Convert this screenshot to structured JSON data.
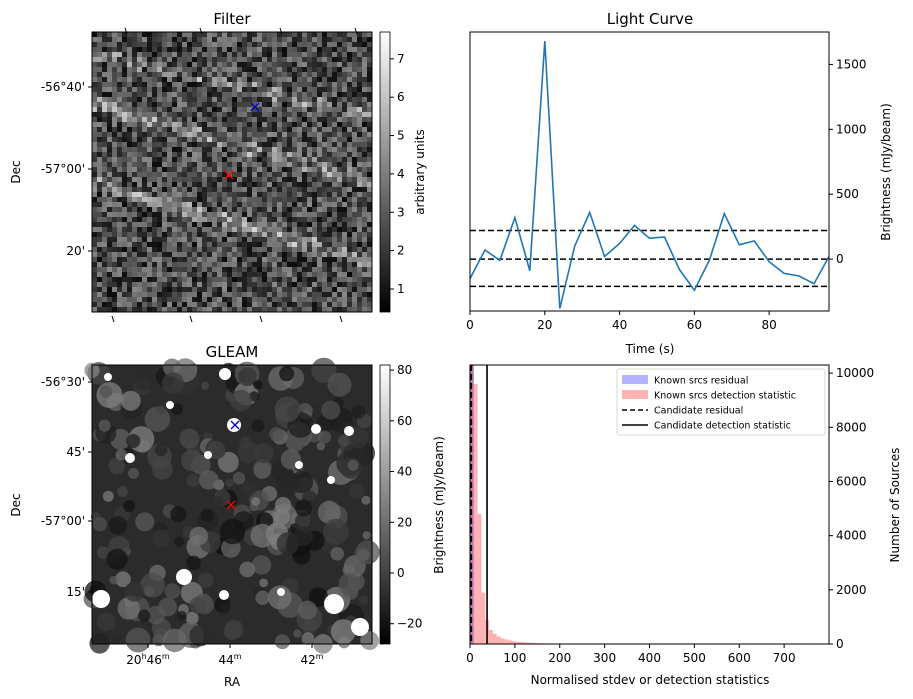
{
  "chart_data": [
    {
      "id": "filter",
      "type": "heatmap",
      "title": "Filter",
      "xlabel": "",
      "ylabel": "Dec",
      "y_tick_labels": [
        "-56°40'",
        "-57°00'",
        "20'"
      ],
      "colorbar_label": "arbitrary units",
      "colorbar_ticks": [
        1,
        2,
        3,
        4,
        5,
        6,
        7
      ],
      "colorbar_range": [
        0.4,
        7.7
      ],
      "colormap": "gray",
      "markers": [
        {
          "label": "candidate",
          "symbol": "x",
          "color": "#ff0000"
        },
        {
          "label": "known source",
          "symbol": "x",
          "color": "#0000cc"
        }
      ]
    },
    {
      "id": "light_curve",
      "type": "line",
      "title": "Light Curve",
      "xlabel": "Time (s)",
      "ylabel": "Brightness (mJy/beam)",
      "xlim": [
        0,
        96
      ],
      "ylim": [
        -400,
        1750
      ],
      "x_ticks": [
        0,
        20,
        40,
        60,
        80
      ],
      "y_ticks": [
        0,
        500,
        1000,
        1500
      ],
      "x": [
        0,
        4,
        8,
        12,
        16,
        20,
        24,
        28,
        32,
        36,
        40,
        44,
        48,
        52,
        56,
        60,
        64,
        68,
        72,
        76,
        80,
        84,
        88,
        92,
        96
      ],
      "values": [
        -150,
        70,
        -10,
        320,
        -90,
        1680,
        -380,
        100,
        360,
        20,
        120,
        260,
        160,
        170,
        -80,
        -240,
        -10,
        350,
        110,
        140,
        -20,
        -110,
        -130,
        -190,
        20
      ],
      "color": "#1f77b4",
      "hlines": [
        {
          "y": 220,
          "style": "dashed"
        },
        {
          "y": 0,
          "style": "dashed"
        },
        {
          "y": -210,
          "style": "dashed"
        }
      ]
    },
    {
      "id": "gleam",
      "type": "heatmap",
      "title": "GLEAM",
      "xlabel": "RA",
      "ylabel": "Dec",
      "x_tick_labels": [
        "20h46m",
        "44m",
        "42m"
      ],
      "y_tick_labels": [
        "-56°30'",
        "45'",
        "-57°00'",
        "15'"
      ],
      "colorbar_ticks": [
        -20,
        0,
        20,
        40,
        60,
        80
      ],
      "colorbar_range": [
        -28,
        82
      ],
      "colormap": "gray",
      "markers": [
        {
          "label": "known source",
          "symbol": "x",
          "color": "#0000cc"
        },
        {
          "label": "candidate",
          "symbol": "x",
          "color": "#ff0000"
        }
      ]
    },
    {
      "id": "histogram",
      "type": "bar",
      "title": "",
      "xlabel": "Normalised stdev or detection statistics",
      "ylabel": "Brightness (mJy/beam)",
      "ylabel_right": "Number of Sources",
      "xlim": [
        0,
        800
      ],
      "ylim": [
        0,
        10300
      ],
      "x_ticks": [
        0,
        100,
        200,
        300,
        400,
        500,
        600,
        700
      ],
      "y_ticks": [
        0,
        2000,
        4000,
        6000,
        8000,
        10000
      ],
      "bin_width": 8.5,
      "series": [
        {
          "name": "Known srcs residual",
          "color": "#0000ff",
          "bin_starts": [
            0
          ],
          "values": [
            10300
          ]
        },
        {
          "name": "Known srcs detection statistic",
          "color": "#ff0000",
          "bin_starts": [
            0,
            8.5,
            17,
            25.5,
            34,
            42.5,
            51,
            59.5,
            68,
            76.5,
            85,
            93.5,
            102,
            110.5,
            119,
            127.5,
            136,
            144.5,
            153,
            161.5,
            170,
            178.5,
            187,
            195.5,
            204,
            212.5,
            221,
            229.5,
            238
          ],
          "values": [
            10300,
            9600,
            4800,
            1900,
            900,
            520,
            380,
            280,
            210,
            170,
            130,
            105,
            85,
            72,
            60,
            50,
            42,
            35,
            30,
            25,
            22,
            18,
            16,
            14,
            12,
            10,
            9,
            8,
            7
          ]
        }
      ],
      "vlines": [
        {
          "name": "Candidate residual",
          "x": 3,
          "style": "dashed"
        },
        {
          "name": "Candidate detection statistic",
          "x": 38,
          "style": "solid"
        }
      ],
      "legend": [
        {
          "label": "Known srcs residual",
          "kind": "patch",
          "color": "#b3b3ff"
        },
        {
          "label": "Known srcs detection statistic",
          "kind": "patch",
          "color": "#ffb3b3"
        },
        {
          "label": "Candidate residual",
          "kind": "dashed"
        },
        {
          "label": "Candidate detection statistic",
          "kind": "solid"
        }
      ],
      "legend_position": "top-right"
    }
  ]
}
